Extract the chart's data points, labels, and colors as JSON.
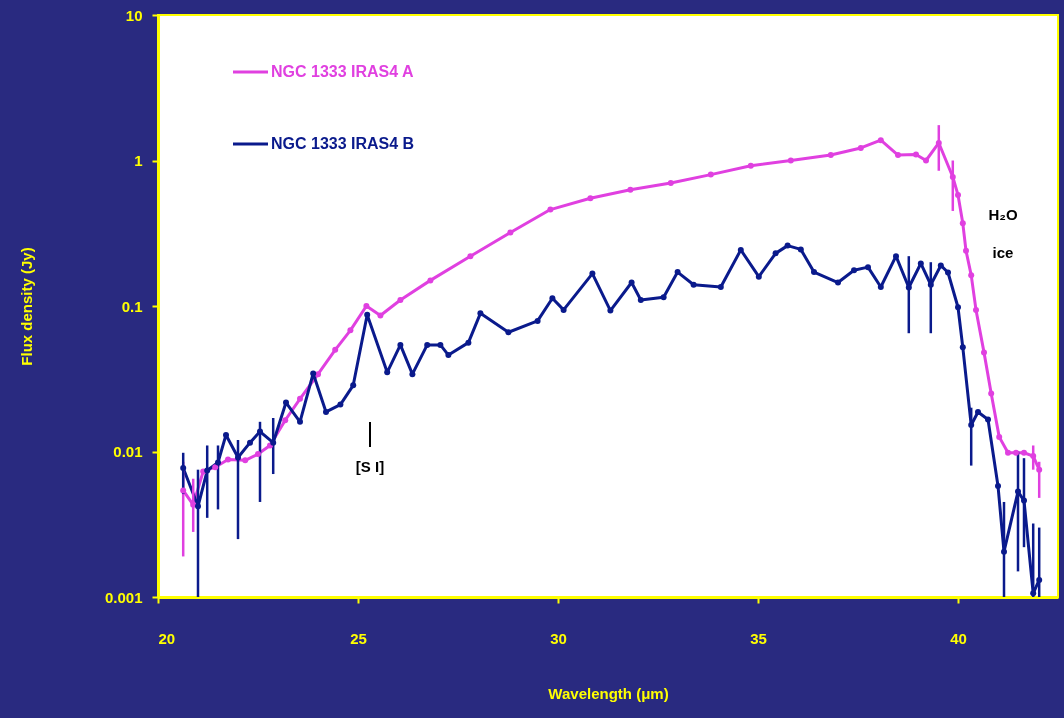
{
  "chart_data": {
    "type": "line",
    "xlabel": "Wavelength (μm)",
    "ylabel": "Flux density (Jy)",
    "xlim": [
      20,
      42.5
    ],
    "xticks": [
      20,
      25,
      30,
      35,
      40
    ],
    "ylim": [
      0.001,
      10
    ],
    "yticks": [
      0.001,
      0.01,
      0.1,
      1,
      10
    ],
    "log": "y",
    "grid": false,
    "legend": "top left",
    "marker": "circle",
    "line_style": "solid",
    "annotations": [
      "[S I]",
      "H₂O ice"
    ],
    "series": [
      {
        "name": "NGC 1333 IRAS4 A",
        "color": "#e040e0",
        "x": [
          20.63,
          20.88,
          21.13,
          21.43,
          21.75,
          22.18,
          22.5,
          22.8,
          23.18,
          23.55,
          24.0,
          24.43,
          24.81,
          25.21,
          25.56,
          26.06,
          26.81,
          27.81,
          28.81,
          29.81,
          30.81,
          31.81,
          32.82,
          33.82,
          34.82,
          35.82,
          36.82,
          37.57,
          38.07,
          38.5,
          38.95,
          39.2,
          39.52,
          39.87,
          40.0,
          40.12,
          40.2,
          40.33,
          40.45,
          40.65,
          40.83,
          41.03,
          41.25,
          41.45,
          41.65,
          41.88,
          42.03
        ],
        "values": [
          0.0054,
          0.0043,
          0.0073,
          0.0078,
          0.0088,
          0.0087,
          0.0096,
          0.011,
          0.0164,
          0.023,
          0.034,
          0.05,
          0.068,
          0.1,
          0.086,
          0.11,
          0.15,
          0.22,
          0.32,
          0.46,
          0.55,
          0.63,
          0.7,
          0.8,
          0.92,
          1.0,
          1.09,
          1.22,
          1.38,
          1.09,
          1.1,
          1.0,
          1.32,
          0.77,
          0.58,
          0.37,
          0.24,
          0.163,
          0.094,
          0.048,
          0.025,
          0.0126,
          0.0098,
          0.0098,
          0.0098,
          0.0093,
          0.0075
        ],
        "errors": [
          [
            0.0019,
            0.0085
          ],
          [
            0.0028,
            0.0065
          ],
          null,
          null,
          null,
          null,
          null,
          null,
          null,
          null,
          null,
          null,
          null,
          null,
          null,
          null,
          null,
          null,
          null,
          null,
          null,
          null,
          null,
          null,
          null,
          null,
          null,
          null,
          null,
          null,
          null,
          null,
          [
            0.85,
            1.75
          ],
          [
            0.45,
            1.0
          ],
          null,
          null,
          null,
          null,
          null,
          null,
          null,
          null,
          null,
          null,
          null,
          [
            0.0075,
            0.011
          ],
          [
            0.0048,
            0.0085
          ]
        ]
      },
      {
        "name": "NGC 1333 IRAS4 B",
        "color": "#0a1a8c",
        "x": [
          20.63,
          21.0,
          21.23,
          21.5,
          21.7,
          22.0,
          22.3,
          22.55,
          22.88,
          23.2,
          23.55,
          23.88,
          24.2,
          24.56,
          24.88,
          25.23,
          25.73,
          26.06,
          26.36,
          26.73,
          27.06,
          27.26,
          27.76,
          28.06,
          28.76,
          29.49,
          29.86,
          30.14,
          30.86,
          31.31,
          31.84,
          32.07,
          32.64,
          32.99,
          33.39,
          34.07,
          34.57,
          35.02,
          35.44,
          35.74,
          36.07,
          36.4,
          37.0,
          37.4,
          37.75,
          38.07,
          38.45,
          38.77,
          39.07,
          39.32,
          39.57,
          39.75,
          40.0,
          40.12,
          40.33,
          40.5,
          40.75,
          41.0,
          41.15,
          41.5,
          41.65,
          41.88,
          42.03
        ],
        "values": [
          0.0077,
          0.0042,
          0.0074,
          0.0084,
          0.013,
          0.0091,
          0.0115,
          0.0137,
          0.0115,
          0.0217,
          0.016,
          0.0344,
          0.0187,
          0.021,
          0.0285,
          0.087,
          0.035,
          0.054,
          0.034,
          0.054,
          0.054,
          0.046,
          0.056,
          0.089,
          0.066,
          0.079,
          0.113,
          0.094,
          0.167,
          0.093,
          0.145,
          0.11,
          0.115,
          0.171,
          0.14,
          0.135,
          0.243,
          0.159,
          0.23,
          0.26,
          0.245,
          0.171,
          0.145,
          0.176,
          0.185,
          0.135,
          0.22,
          0.134,
          0.196,
          0.14,
          0.19,
          0.17,
          0.098,
          0.052,
          0.0152,
          0.0187,
          0.0166,
          0.0058,
          0.00205,
          0.0053,
          0.0046,
          0.00106,
          0.00131
        ],
        "errors": [
          [
            0.0051,
            0.0098
          ],
          [
            0.001,
            0.0075
          ],
          [
            0.0035,
            0.011
          ],
          [
            0.004,
            0.011
          ],
          null,
          [
            0.0025,
            0.012
          ],
          null,
          [
            0.0045,
            0.016
          ],
          [
            0.007,
            0.017
          ],
          null,
          null,
          null,
          null,
          null,
          null,
          null,
          null,
          null,
          null,
          null,
          null,
          null,
          null,
          null,
          null,
          null,
          null,
          null,
          null,
          null,
          null,
          null,
          null,
          null,
          null,
          null,
          null,
          null,
          null,
          null,
          null,
          null,
          null,
          null,
          null,
          null,
          null,
          [
            0.065,
            0.22
          ],
          null,
          [
            0.065,
            0.2
          ],
          null,
          null,
          null,
          null,
          [
            0.008,
            0.02
          ],
          null,
          null,
          null,
          [
            0.001,
            0.0045
          ],
          [
            0.0015,
            0.01
          ],
          [
            0.0022,
            0.009
          ],
          [
            0.001,
            0.0032
          ],
          [
            0.001,
            0.003
          ]
        ]
      }
    ]
  }
}
